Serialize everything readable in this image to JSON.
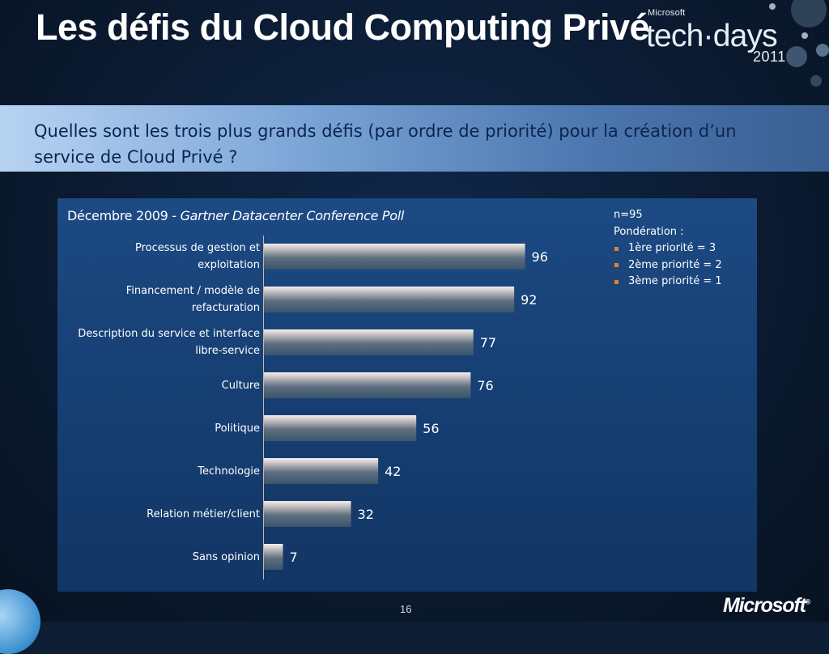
{
  "slide": {
    "title": "Les défis du Cloud Computing Privé",
    "subtitle": "Quelles sont les trois plus grands défis (par ordre de priorité) pour la création d’un  service de Cloud Privé ?",
    "page_number": "16"
  },
  "logo": {
    "brand": "Microsoft",
    "product": "tech·days",
    "year": "2011",
    "footer_brand": "Microsoft"
  },
  "notes": {
    "n": "n=95",
    "weighting_title": "Pondération :",
    "items": [
      "1ère priorité = 3",
      "2ème priorité = 2",
      "3ème priorité = 1"
    ],
    "bullet_color": "#ef7b2a"
  },
  "chart_data": {
    "type": "bar",
    "orientation": "horizontal",
    "title_prefix": "Décembre 2009 - ",
    "title_source": "Gartner Datacenter Conference Poll",
    "categories": [
      [
        "Processus de gestion et",
        "exploitation"
      ],
      [
        "Financement / modèle de",
        "refacturation"
      ],
      [
        "Description du service et interface",
        "libre-service"
      ],
      [
        "Culture"
      ],
      [
        "Politique"
      ],
      [
        "Technologie"
      ],
      [
        "Relation métier/client"
      ],
      [
        "Sans opinion"
      ]
    ],
    "values": [
      96,
      92,
      77,
      76,
      56,
      42,
      32,
      7
    ],
    "xlim": [
      0,
      100
    ],
    "grid": false,
    "colors": {
      "bar_top": "#f2ecec",
      "bar_bottom": "#3c566c",
      "label": "#ffffff"
    }
  }
}
